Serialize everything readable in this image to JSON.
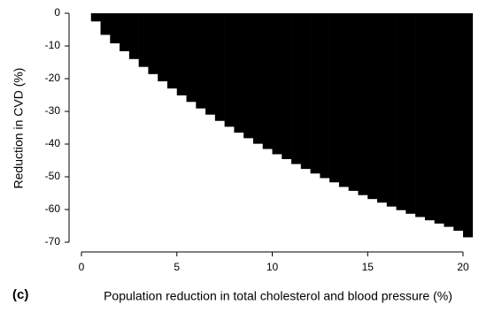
{
  "chart_data": {
    "type": "bar",
    "panel_label": "(c)",
    "x_label": "Population reduction in total cholesterol and blood pressure (%)",
    "y_label": "Reduction in CVD (%)",
    "x": [
      0.75,
      1.25,
      1.75,
      2.25,
      2.75,
      3.25,
      3.75,
      4.25,
      4.75,
      5.25,
      5.75,
      6.25,
      6.75,
      7.25,
      7.75,
      8.25,
      8.75,
      9.25,
      9.75,
      10.25,
      10.75,
      11.25,
      11.75,
      12.25,
      12.75,
      13.25,
      13.75,
      14.25,
      14.75,
      15.25,
      15.75,
      16.25,
      16.75,
      17.25,
      17.75,
      18.25,
      18.75,
      19.25,
      19.75,
      20.25
    ],
    "values": [
      -2.5,
      -6.6,
      -9.2,
      -11.6,
      -14.0,
      -16.4,
      -18.6,
      -20.8,
      -23.0,
      -25.1,
      -27.1,
      -29.1,
      -31.0,
      -32.9,
      -34.7,
      -36.5,
      -38.2,
      -39.9,
      -41.5,
      -43.1,
      -44.6,
      -46.1,
      -47.6,
      -49.0,
      -50.4,
      -51.7,
      -53.1,
      -54.3,
      -55.6,
      -56.8,
      -57.9,
      -59.1,
      -60.2,
      -61.3,
      -62.3,
      -63.3,
      -64.3,
      -65.3,
      -66.5,
      -68.5
    ],
    "color": "#000000",
    "xlim": [
      0,
      20
    ],
    "xticks": [
      0,
      5,
      10,
      15,
      20
    ],
    "ylim": [
      -70,
      0
    ],
    "yticks": [
      0,
      -10,
      -20,
      -30,
      -40,
      -50,
      -60,
      -70
    ]
  }
}
